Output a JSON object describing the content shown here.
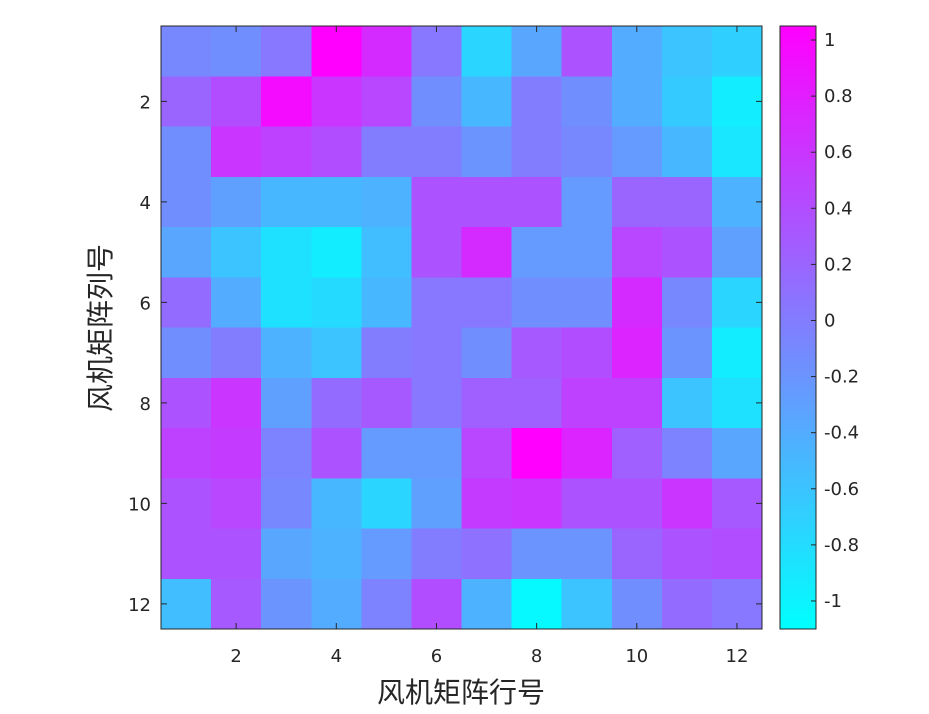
{
  "chart_data": {
    "type": "heatmap",
    "xlabel": "风机矩阵行号",
    "ylabel": "风机矩阵列号",
    "x": [
      1,
      2,
      3,
      4,
      5,
      6,
      7,
      8,
      9,
      10,
      11,
      12
    ],
    "y": [
      1,
      2,
      3,
      4,
      5,
      6,
      7,
      8,
      9,
      10,
      11,
      12
    ],
    "xticks": [
      "2",
      "4",
      "6",
      "8",
      "10",
      "12"
    ],
    "yticks": [
      "2",
      "4",
      "6",
      "8",
      "10",
      "12"
    ],
    "colorbar": {
      "colormap": "cool",
      "range": [
        -1.1,
        1.05
      ],
      "low_color": "#00ffff",
      "high_color": "#ff00ff",
      "ticks": [
        "1",
        "0.8",
        "0.6",
        "0.4",
        "0.2",
        "0",
        "-0.2",
        "-0.4",
        "-0.6",
        "-0.8",
        "-1"
      ]
    },
    "values": [
      [
        -0.1,
        -0.15,
        0.05,
        1.05,
        0.7,
        0.05,
        -0.75,
        -0.35,
        0.35,
        -0.4,
        -0.6,
        -0.7
      ],
      [
        0.2,
        0.4,
        0.95,
        0.6,
        0.45,
        -0.15,
        -0.5,
        0.0,
        -0.15,
        -0.4,
        -0.65,
        -0.95
      ],
      [
        -0.15,
        0.6,
        0.5,
        0.4,
        0.0,
        0.0,
        -0.2,
        0.0,
        -0.1,
        -0.25,
        -0.5,
        -0.9
      ],
      [
        -0.15,
        -0.3,
        -0.5,
        -0.5,
        -0.45,
        0.35,
        0.35,
        0.35,
        -0.25,
        0.2,
        0.2,
        -0.45
      ],
      [
        -0.35,
        -0.6,
        -0.85,
        -0.95,
        -0.55,
        0.35,
        0.7,
        -0.25,
        -0.25,
        0.45,
        0.35,
        -0.3
      ],
      [
        0.15,
        -0.4,
        -0.85,
        -0.8,
        -0.5,
        0.05,
        0.05,
        -0.15,
        -0.15,
        0.7,
        -0.1,
        -0.75
      ],
      [
        -0.15,
        0.0,
        -0.45,
        -0.6,
        0.0,
        0.05,
        -0.15,
        0.3,
        0.4,
        0.75,
        -0.2,
        -0.95
      ],
      [
        0.35,
        0.6,
        -0.3,
        0.15,
        0.3,
        0.05,
        0.25,
        0.25,
        0.5,
        0.5,
        -0.6,
        -0.85
      ],
      [
        0.5,
        0.55,
        -0.05,
        0.35,
        -0.25,
        -0.25,
        0.45,
        1.05,
        0.75,
        0.25,
        -0.05,
        -0.35
      ],
      [
        0.35,
        0.45,
        -0.1,
        -0.5,
        -0.75,
        -0.3,
        0.55,
        0.6,
        0.35,
        0.35,
        0.6,
        0.3
      ],
      [
        0.35,
        0.35,
        -0.35,
        -0.45,
        -0.25,
        0.0,
        0.1,
        -0.2,
        -0.2,
        0.2,
        0.35,
        0.4
      ],
      [
        -0.55,
        0.3,
        -0.2,
        -0.4,
        -0.05,
        0.4,
        -0.45,
        -1.05,
        -0.6,
        -0.15,
        0.15,
        0.05
      ]
    ]
  }
}
